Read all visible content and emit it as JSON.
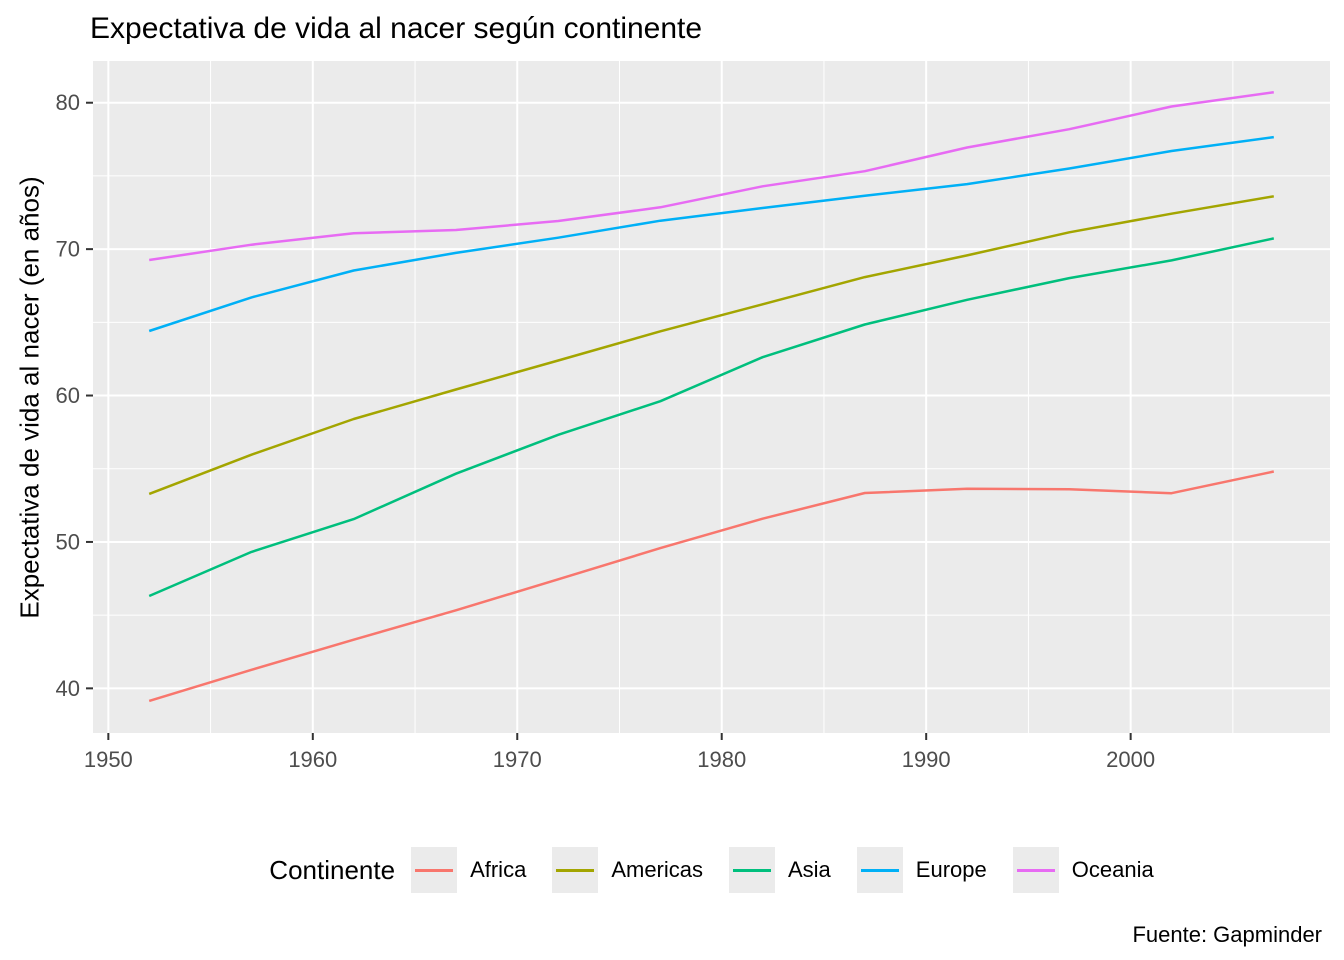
{
  "chart_data": {
    "type": "line",
    "title": "Expectativa de vida al nacer según continente",
    "xlabel": "",
    "ylabel": "Expectativa de vida al nacer (en años)",
    "caption": "Fuente: Gapminder",
    "legend_title": "Continente",
    "legend_position": "bottom",
    "grid": true,
    "panel_bg": "#EBEBEB",
    "grid_color": "#FFFFFF",
    "tick_mark_color": "#333333",
    "tick_label_color": "#4D4D4D",
    "x": [
      1952,
      1957,
      1962,
      1967,
      1972,
      1977,
      1982,
      1987,
      1992,
      1997,
      2002,
      2007
    ],
    "series": [
      {
        "name": "Africa",
        "color": "#F8766D",
        "values": [
          39.14,
          41.27,
          43.32,
          45.33,
          47.45,
          49.58,
          51.59,
          53.34,
          53.63,
          53.6,
          53.33,
          54.81
        ]
      },
      {
        "name": "Americas",
        "color": "#A3A500",
        "values": [
          53.28,
          55.96,
          58.4,
          60.41,
          62.39,
          64.39,
          66.23,
          68.09,
          69.57,
          71.15,
          72.42,
          73.61
        ]
      },
      {
        "name": "Asia",
        "color": "#00BF7D",
        "values": [
          46.31,
          49.32,
          51.56,
          54.66,
          57.32,
          59.61,
          62.62,
          64.85,
          66.54,
          68.02,
          69.23,
          70.73
        ]
      },
      {
        "name": "Europe",
        "color": "#00B0F6",
        "values": [
          64.41,
          66.7,
          68.54,
          69.74,
          70.78,
          71.94,
          72.81,
          73.64,
          74.44,
          75.51,
          76.7,
          77.65
        ]
      },
      {
        "name": "Oceania",
        "color": "#E76BF3",
        "values": [
          69.26,
          70.3,
          71.09,
          71.31,
          71.92,
          72.86,
          74.29,
          75.32,
          76.94,
          78.19,
          79.74,
          80.72
        ]
      }
    ],
    "x_ticks": [
      1950,
      1960,
      1970,
      1980,
      1990,
      2000
    ],
    "x_minor_ticks": [
      1955,
      1965,
      1975,
      1985,
      1995,
      2005
    ],
    "y_ticks": [
      40,
      50,
      60,
      70,
      80
    ],
    "y_minor_ticks": [
      45,
      55,
      65,
      75
    ],
    "xlim": [
      1949.25,
      2009.75
    ],
    "ylim": [
      36.95,
      82.85
    ]
  }
}
